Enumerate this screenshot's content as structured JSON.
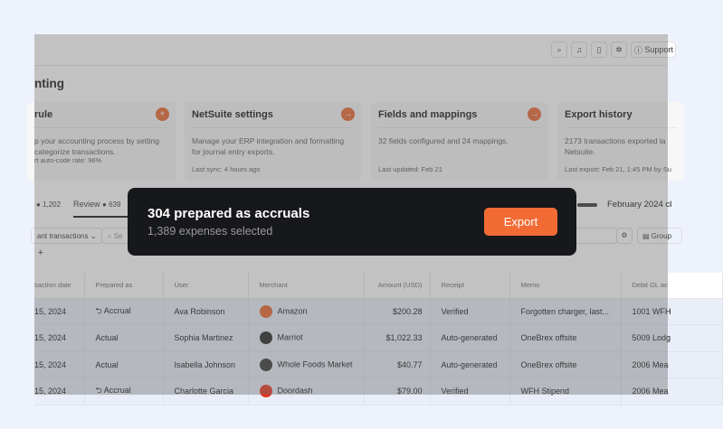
{
  "topbar": {
    "support_label": "Support"
  },
  "page": {
    "title": "nting"
  },
  "cards": [
    {
      "title": "rule",
      "desc": [
        "p your accounting process by setting",
        "categorize transactions."
      ],
      "footer": "rt auto-code rate: 96%",
      "icon": "plus-icon"
    },
    {
      "title": "NetSuite settings",
      "desc": [
        "Manage your ERP integration and formatting",
        "for journal entry exports."
      ],
      "footer": "Last sync: 4 hours ago",
      "icon": "arrow-right-icon"
    },
    {
      "title": "Fields and mappings",
      "desc": [
        "32 fields configured and 24 mappings."
      ],
      "footer": "Last updated: Feb 21",
      "icon": "arrow-right-icon"
    },
    {
      "title": "Export history",
      "desc": [
        "2173 transactions exported la",
        "Netsuite."
      ],
      "footer": "Last export: Feb 21, 1:45 PM by Su"
    }
  ],
  "tabs": [
    {
      "count": "1,202"
    },
    {
      "label": "Review",
      "count": "639"
    }
  ],
  "period": "February 2024 cl",
  "filters": {
    "view": "ant transactions",
    "search_placeholder": "Se",
    "group": "Group"
  },
  "table": {
    "columns": [
      "saction date",
      "Prepared as",
      "User",
      "Merchant",
      "Amount (USD)",
      "Receipt",
      "Memo",
      "Debit GL ac"
    ],
    "rows": [
      {
        "date": "15, 2024",
        "prepared": "Accrual",
        "accrual": true,
        "user": "Ava Robinson",
        "merchant": "Amazon",
        "logo": "#e8622a",
        "amount": "$200.28",
        "receipt": "Verified",
        "memo": "Forgotten charger, last...",
        "gl": "1001 WFH"
      },
      {
        "date": "15, 2024",
        "prepared": "Actual",
        "accrual": false,
        "user": "Sophia Martinez",
        "merchant": "Marriot",
        "logo": "#222222",
        "amount": "$1,022.33",
        "receipt": "Auto-generated",
        "memo": "OneBrex offsite",
        "gl": "5009 Lodg"
      },
      {
        "date": "15, 2024",
        "prepared": "Actual",
        "accrual": false,
        "user": "Isabella Johnson",
        "merchant": "Whole Foods Market",
        "logo": "#333333",
        "amount": "$40.77",
        "receipt": "Auto-generated",
        "memo": "OneBrex offsite",
        "gl": "2006 Mea"
      },
      {
        "date": "15, 2024",
        "prepared": "Accrual",
        "accrual": true,
        "user": "Charlotte Garcia",
        "merchant": "Doordash",
        "logo": "#e8321e",
        "amount": "$79.00",
        "receipt": "Verified",
        "memo": "WFH Stipend",
        "gl": "2006 Mea"
      }
    ]
  },
  "toast": {
    "title": "304 prepared as accruals",
    "subtitle": "1,389 expenses selected",
    "button": "Export"
  },
  "colors": {
    "accent": "#f26b35",
    "toast_bg": "#17181c"
  }
}
